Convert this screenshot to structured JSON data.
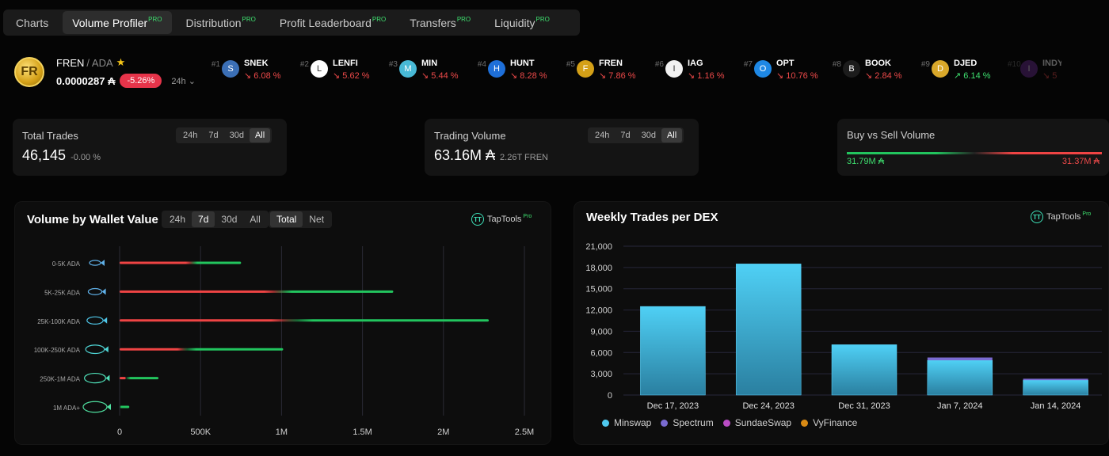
{
  "tabs": [
    {
      "label": "Charts",
      "pro": ""
    },
    {
      "label": "Volume Profiler",
      "pro": "PRO"
    },
    {
      "label": "Distribution",
      "pro": "PRO"
    },
    {
      "label": "Profit Leaderboard",
      "pro": "PRO"
    },
    {
      "label": "Transfers",
      "pro": "PRO"
    },
    {
      "label": "Liquidity",
      "pro": "PRO"
    }
  ],
  "token": {
    "logo": "FR",
    "name": "FREN",
    "pair": "/ ADA",
    "star": "★",
    "price": "0.0000287 ₳",
    "change": "-5.26%",
    "timeframe": "24h ⌄"
  },
  "ticker": [
    {
      "rank": "#1",
      "symbol": "SNEK",
      "change": "↘ 6.08 %",
      "dir": "down",
      "color": "#3b6fb6",
      "glyph": "S"
    },
    {
      "rank": "#2",
      "symbol": "LENFI",
      "change": "↘ 5.62 %",
      "dir": "down",
      "color": "#ffffff",
      "glyph": "L"
    },
    {
      "rank": "#3",
      "symbol": "MIN",
      "change": "↘ 5.44 %",
      "dir": "down",
      "color": "#48b9d6",
      "glyph": "M"
    },
    {
      "rank": "#4",
      "symbol": "HUNT",
      "change": "↘ 8.28 %",
      "dir": "down",
      "color": "#1e6fd9",
      "glyph": "H"
    },
    {
      "rank": "#5",
      "symbol": "FREN",
      "change": "↘ 7.86 %",
      "dir": "down",
      "color": "#d4a017",
      "glyph": "F"
    },
    {
      "rank": "#6",
      "symbol": "IAG",
      "change": "↘ 1.16 %",
      "dir": "down",
      "color": "#f2f2f2",
      "glyph": "I"
    },
    {
      "rank": "#7",
      "symbol": "OPT",
      "change": "↘ 10.76 %",
      "dir": "down",
      "color": "#1e88e5",
      "glyph": "O"
    },
    {
      "rank": "#8",
      "symbol": "BOOK",
      "change": "↘ 2.84 %",
      "dir": "down",
      "color": "#1c1c1c",
      "glyph": "B"
    },
    {
      "rank": "#9",
      "symbol": "DJED",
      "change": "↗ 6.14 %",
      "dir": "up",
      "color": "#d9a82a",
      "glyph": "D"
    },
    {
      "rank": "#10",
      "symbol": "INDY",
      "change": "↘ 5",
      "dir": "down",
      "color": "#6a2c91",
      "glyph": "I"
    }
  ],
  "stats": {
    "trades": {
      "title": "Total Trades",
      "value": "46,145",
      "sub": "-0.00 %",
      "timeframes": [
        "24h",
        "7d",
        "30d",
        "All"
      ],
      "active": "All"
    },
    "volume": {
      "title": "Trading Volume",
      "value": "63.16M ₳",
      "sub": "2.26T FREN",
      "timeframes": [
        "24h",
        "7d",
        "30d",
        "All"
      ],
      "active": "All"
    },
    "buysell": {
      "title": "Buy vs Sell Volume",
      "buy": "31.79M ₳",
      "sell": "31.37M ₳"
    }
  },
  "wallet_panel": {
    "title": "Volume by Wallet Value",
    "timeframes": [
      "24h",
      "7d",
      "30d",
      "All"
    ],
    "active_tf": "7d",
    "modes": [
      "Total",
      "Net"
    ],
    "active_mode": "Total",
    "brand": "TapTools",
    "brand_pro": "Pro"
  },
  "dex_panel": {
    "title": "Weekly Trades per DEX",
    "brand": "TapTools",
    "brand_pro": "Pro"
  },
  "chart_data": [
    {
      "type": "bar",
      "orientation": "horizontal",
      "categories": [
        "0-5K ADA",
        "5K-25K ADA",
        "25K-100K ADA",
        "100K-250K ADA",
        "250K-1M ADA",
        "1M ADA+"
      ],
      "series": [
        {
          "values": [
            480000,
            1050000,
            1100000,
            420000,
            40000,
            0
          ],
          "color": "#ef4444"
        },
        {
          "values": [
            270000,
            640000,
            1180000,
            590000,
            200000,
            60000
          ],
          "color": "#22c55e"
        }
      ],
      "xlim": [
        0,
        2500000
      ],
      "xticks": [
        0,
        500000,
        1000000,
        1500000,
        2000000,
        2500000
      ],
      "xtick_labels": [
        "0",
        "500K",
        "1M",
        "1.5M",
        "2M",
        "2.5M"
      ],
      "icon_colors": [
        "#5fb0e8",
        "#5fb0e8",
        "#4fc6e8",
        "#4fd6d6",
        "#4fe0b8",
        "#4fe0a0"
      ],
      "grid": true
    },
    {
      "type": "bar",
      "stacked": true,
      "categories": [
        "Dec 17, 2023",
        "Dec 24, 2023",
        "Dec 31, 2023",
        "Jan 7, 2024",
        "Jan 14, 2024"
      ],
      "series": [
        {
          "name": "Minswap",
          "values": [
            12500,
            18500,
            7100,
            4900,
            2100
          ],
          "color": "#4fc9ef"
        },
        {
          "name": "Spectrum",
          "values": [
            0,
            0,
            0,
            400,
            200
          ],
          "color": "#7a6bd1"
        },
        {
          "name": "SundaeSwap",
          "values": [
            0,
            0,
            0,
            0,
            0
          ],
          "color": "#b94cc4"
        },
        {
          "name": "VyFinance",
          "values": [
            0,
            0,
            0,
            0,
            0
          ],
          "color": "#d98a14"
        }
      ],
      "ylim": [
        0,
        21000
      ],
      "yticks": [
        0,
        3000,
        6000,
        9000,
        12000,
        15000,
        18000,
        21000
      ],
      "ytick_labels": [
        "0",
        "3,000",
        "6,000",
        "9,000",
        "12,000",
        "15,000",
        "18,000",
        "21,000"
      ],
      "legend": "bottom-left",
      "grid": true
    }
  ]
}
